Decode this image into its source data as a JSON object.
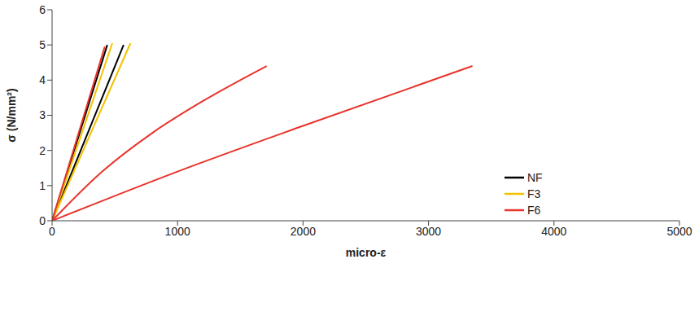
{
  "chart_data": {
    "type": "line",
    "x_label": "micro-ε",
    "y_label": "σ (N/mm²)",
    "xlim": [
      0,
      5000
    ],
    "xticks": [
      0,
      1000,
      2000,
      3000,
      4000,
      5000
    ],
    "ylim": [
      0,
      6
    ],
    "yticks": [
      0,
      1,
      2,
      3,
      4,
      5,
      6
    ],
    "grid": false,
    "legend": "right",
    "series": [
      {
        "name": "NF",
        "color": "#000000",
        "x": [
          0,
          440
        ],
        "values": [
          0,
          5.0
        ]
      },
      {
        "name": "NF",
        "color": "#000000",
        "x": [
          0,
          570
        ],
        "values": [
          0,
          5.0
        ]
      },
      {
        "name": "F3",
        "color": "#f2c200",
        "x": [
          0,
          480
        ],
        "values": [
          0,
          5.05
        ]
      },
      {
        "name": "F3",
        "color": "#f2c200",
        "x": [
          0,
          625
        ],
        "values": [
          0,
          5.05
        ]
      },
      {
        "name": "F6",
        "color": "#e8342c",
        "x": [
          0,
          420
        ],
        "values": [
          0,
          4.95
        ]
      },
      {
        "name": "F6",
        "color": "#e8342c",
        "x": [
          0,
          400,
          800,
          1200,
          1710
        ],
        "values": [
          0,
          1.4,
          2.5,
          3.4,
          4.4
        ]
      },
      {
        "name": "F6",
        "color": "#e8342c",
        "x": [
          0,
          1000,
          2000,
          3350
        ],
        "values": [
          0,
          1.4,
          2.7,
          4.4
        ]
      }
    ]
  }
}
